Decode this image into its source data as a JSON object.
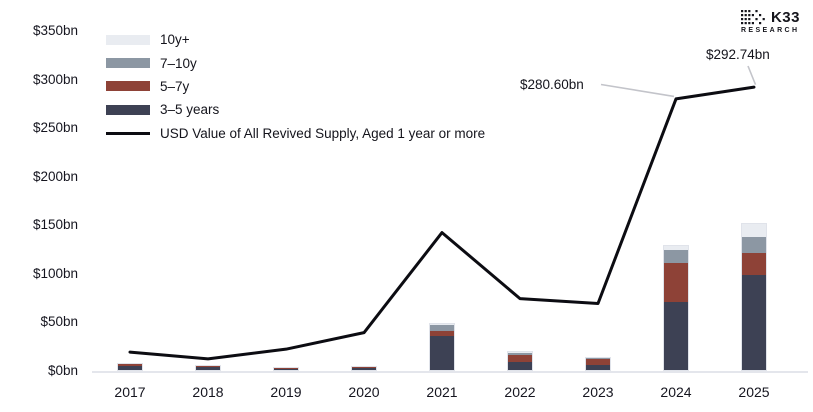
{
  "logo": {
    "brand": "K33",
    "sub": "RESEARCH"
  },
  "annotations": [
    {
      "label": "$280.60bn",
      "target_year": "2024",
      "value": 280.6
    },
    {
      "label": "$292.74bn",
      "target_year": "2025",
      "value": 292.74
    }
  ],
  "legend": {
    "items": [
      {
        "label": "10y+",
        "type": "box",
        "color": "#e9ecf1"
      },
      {
        "label": "7–10y",
        "type": "box",
        "color": "#8c97a3"
      },
      {
        "label": "5–7y",
        "type": "box",
        "color": "#8e4237"
      },
      {
        "label": "3–5 years",
        "type": "box",
        "color": "#3d4154"
      },
      {
        "label": "USD Value of All Revived Supply, Aged 1 year or more",
        "type": "line",
        "color": "#0c0c12"
      }
    ]
  },
  "chart_data": {
    "type": "bar",
    "stacked": true,
    "title": "",
    "xlabel": "",
    "ylabel": "",
    "grid": false,
    "legend_position": "top-left",
    "categories": [
      "2017",
      "2018",
      "2019",
      "2020",
      "2021",
      "2022",
      "2023",
      "2024",
      "2025"
    ],
    "series": [
      {
        "name": "3–5 years",
        "color": "#3d4154",
        "values": [
          6,
          5,
          3,
          3.5,
          37,
          10,
          6,
          72,
          100
        ]
      },
      {
        "name": "5–7y",
        "color": "#8e4237",
        "values": [
          3,
          2,
          1.5,
          1.5,
          5,
          8,
          7.5,
          40,
          23
        ]
      },
      {
        "name": "7–10y",
        "color": "#8c97a3",
        "values": [
          0,
          0,
          0,
          1,
          7,
          2,
          1.5,
          14,
          16
        ]
      },
      {
        "name": "10y+",
        "color": "#e9ecf1",
        "values": [
          0,
          0,
          0,
          0,
          1,
          1,
          0,
          4,
          14
        ]
      }
    ],
    "line": {
      "name": "USD Value of All Revived Supply, Aged 1 year or more",
      "color": "#0c0c12",
      "values": [
        20,
        13,
        23,
        40,
        143,
        75,
        70,
        280.6,
        292.74
      ]
    },
    "y_axis": {
      "ticks": [
        0,
        50,
        100,
        150,
        200,
        250,
        300,
        350
      ],
      "tick_labels": [
        "$0bn",
        "$50bn",
        "$100bn",
        "$150bn",
        "$200bn",
        "$250bn",
        "$300bn",
        "$350bn"
      ],
      "ylim": [
        0,
        350
      ]
    }
  }
}
